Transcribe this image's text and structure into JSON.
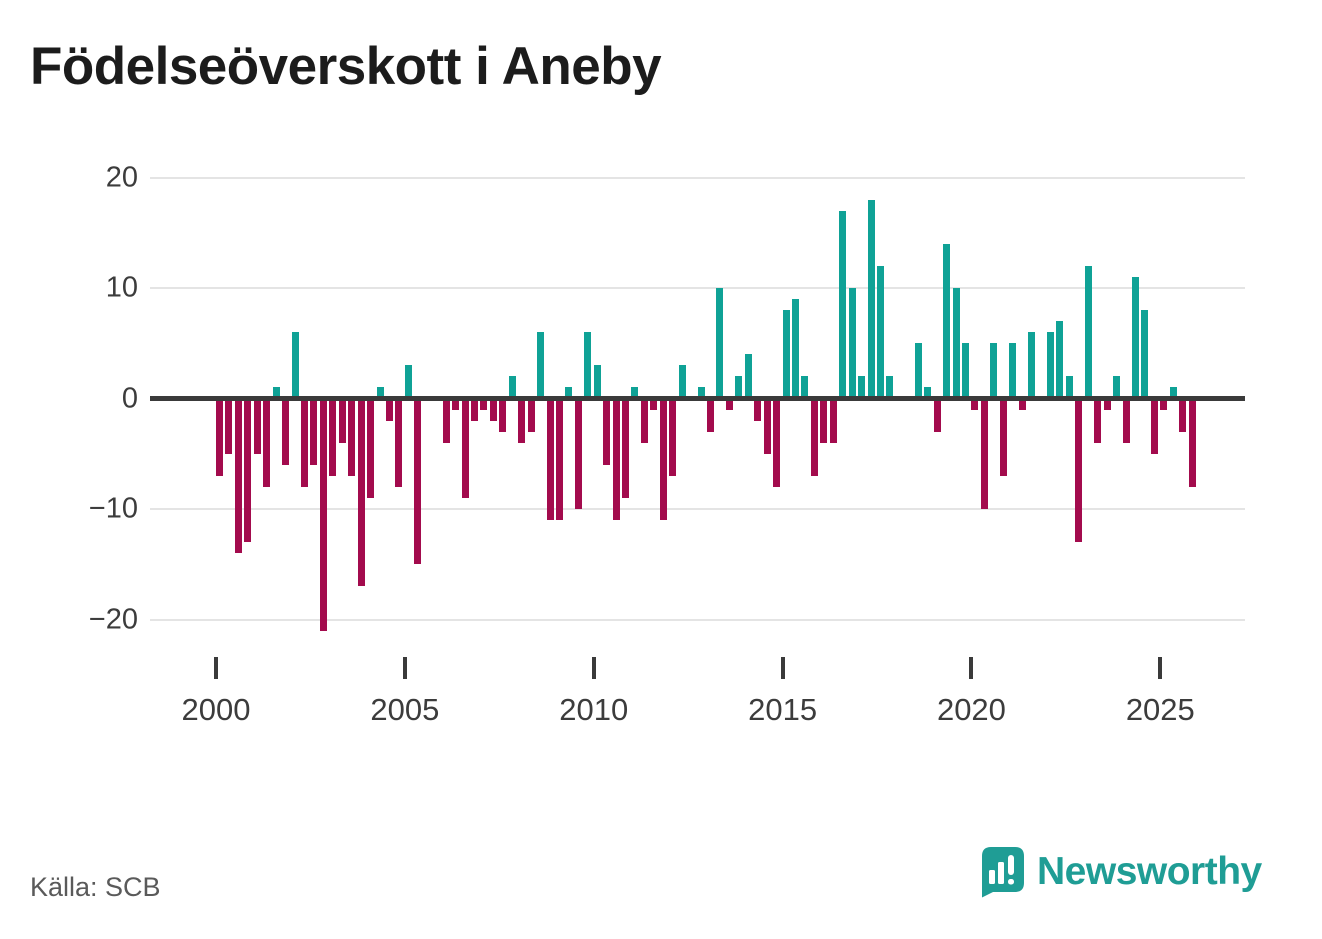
{
  "title": "Födelseöverskott i Aneby",
  "source": "Källa: SCB",
  "logo": {
    "text": "Newsworthy",
    "icon": "newsworthy-speech-bubble-chart-icon"
  },
  "colors": {
    "positive_bar": "#0fa296",
    "negative_bar": "#a30b4d",
    "axis_line": "#3a3a3a",
    "gridline": "#e4e4e4",
    "title_text": "#1c1c1c",
    "tick_text": "#3c3c3c",
    "source_text": "#5a5a5a",
    "logo_teal": "#1f9d95"
  },
  "chart_data": {
    "type": "bar",
    "title": "Födelseöverskott i Aneby",
    "xlabel": "",
    "ylabel": "",
    "unit": "quarterly",
    "grid": "horizontal",
    "ylim": [
      -24,
      22
    ],
    "y_ticks": [
      20,
      10,
      0,
      -10,
      -20
    ],
    "y_tick_labels": [
      "20",
      "10",
      "0",
      "−10",
      "−20"
    ],
    "x_tick_years": [
      2000,
      2005,
      2010,
      2015,
      2020,
      2025
    ],
    "x_tick_labels": [
      "2000",
      "2005",
      "2010",
      "2015",
      "2020",
      "2025"
    ],
    "series_by_year": [
      {
        "year": 2000,
        "quarters": [
          -7,
          -5,
          -14,
          -13
        ]
      },
      {
        "year": 2001,
        "quarters": [
          -5,
          -8,
          1,
          -6
        ]
      },
      {
        "year": 2002,
        "quarters": [
          6,
          -8,
          -6,
          -21
        ]
      },
      {
        "year": 2003,
        "quarters": [
          -7,
          -4,
          -7,
          -17
        ]
      },
      {
        "year": 2004,
        "quarters": [
          -9,
          1,
          -2,
          -8
        ]
      },
      {
        "year": 2005,
        "quarters": [
          3,
          -15,
          0,
          0
        ]
      },
      {
        "year": 2006,
        "quarters": [
          -4,
          -1,
          -9,
          -2
        ]
      },
      {
        "year": 2007,
        "quarters": [
          -1,
          -2,
          -3,
          2
        ]
      },
      {
        "year": 2008,
        "quarters": [
          -4,
          -3,
          6,
          -11
        ]
      },
      {
        "year": 2009,
        "quarters": [
          -11,
          1,
          -10,
          6
        ]
      },
      {
        "year": 2010,
        "quarters": [
          3,
          -6,
          -11,
          -9
        ]
      },
      {
        "year": 2011,
        "quarters": [
          1,
          -4,
          -1,
          -11
        ]
      },
      {
        "year": 2012,
        "quarters": [
          -7,
          3,
          0,
          1
        ]
      },
      {
        "year": 2013,
        "quarters": [
          -3,
          10,
          -1,
          2
        ]
      },
      {
        "year": 2014,
        "quarters": [
          4,
          -2,
          -5,
          -8
        ]
      },
      {
        "year": 2015,
        "quarters": [
          8,
          9,
          2,
          -7
        ]
      },
      {
        "year": 2016,
        "quarters": [
          -4,
          -4,
          17,
          10
        ]
      },
      {
        "year": 2017,
        "quarters": [
          2,
          18,
          12,
          2
        ]
      },
      {
        "year": 2018,
        "quarters": [
          0,
          0,
          5,
          1
        ]
      },
      {
        "year": 2019,
        "quarters": [
          -3,
          14,
          10,
          5
        ]
      },
      {
        "year": 2020,
        "quarters": [
          -1,
          -10,
          5,
          -7
        ]
      },
      {
        "year": 2021,
        "quarters": [
          5,
          -1,
          6,
          0
        ]
      },
      {
        "year": 2022,
        "quarters": [
          6,
          7,
          2,
          -13
        ]
      },
      {
        "year": 2023,
        "quarters": [
          12,
          -4,
          -1,
          2
        ]
      },
      {
        "year": 2024,
        "quarters": [
          -4,
          11,
          8,
          -5
        ]
      },
      {
        "year": 2025,
        "quarters": [
          -1,
          1,
          -3,
          -8
        ]
      }
    ]
  }
}
